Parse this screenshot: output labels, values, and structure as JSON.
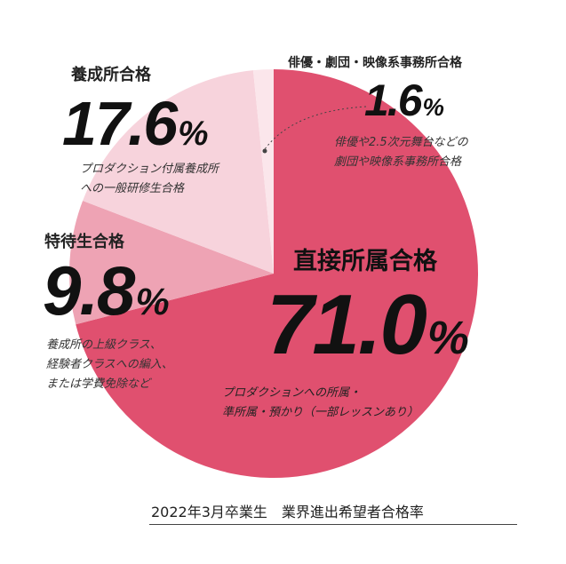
{
  "chart_data": {
    "type": "pie",
    "slices": [
      {
        "category": "直接所属合格",
        "value": 71.0,
        "value_label": "71.0",
        "percent_sign": "%",
        "color": "#e0506f",
        "description": [
          "プロダクションへの所属・",
          "準所属・預かり（一部レッスンあり）"
        ]
      },
      {
        "category": "特待生合格",
        "value": 9.8,
        "value_label": "9.8",
        "percent_sign": "%",
        "color": "#eea3b4",
        "description": [
          "養成所の上級クラス、",
          "経験者クラスへの編入、",
          "または学費免除など"
        ]
      },
      {
        "category": "養成所合格",
        "value": 17.6,
        "value_label": "17.6",
        "percent_sign": "%",
        "color": "#f7d3dc",
        "description": [
          "プロダクション付属養成所",
          "への一般研修生合格"
        ]
      },
      {
        "category": "俳優・劇団・映像系事務所合格",
        "value": 1.6,
        "value_label": "1.6",
        "percent_sign": "%",
        "color": "#fbe6eb",
        "description": [
          "俳優や2.5次元舞台などの",
          "劇団や映像系事務所合格"
        ]
      }
    ],
    "footer": "2022年3月卒業生　業界進出希望者合格率"
  }
}
